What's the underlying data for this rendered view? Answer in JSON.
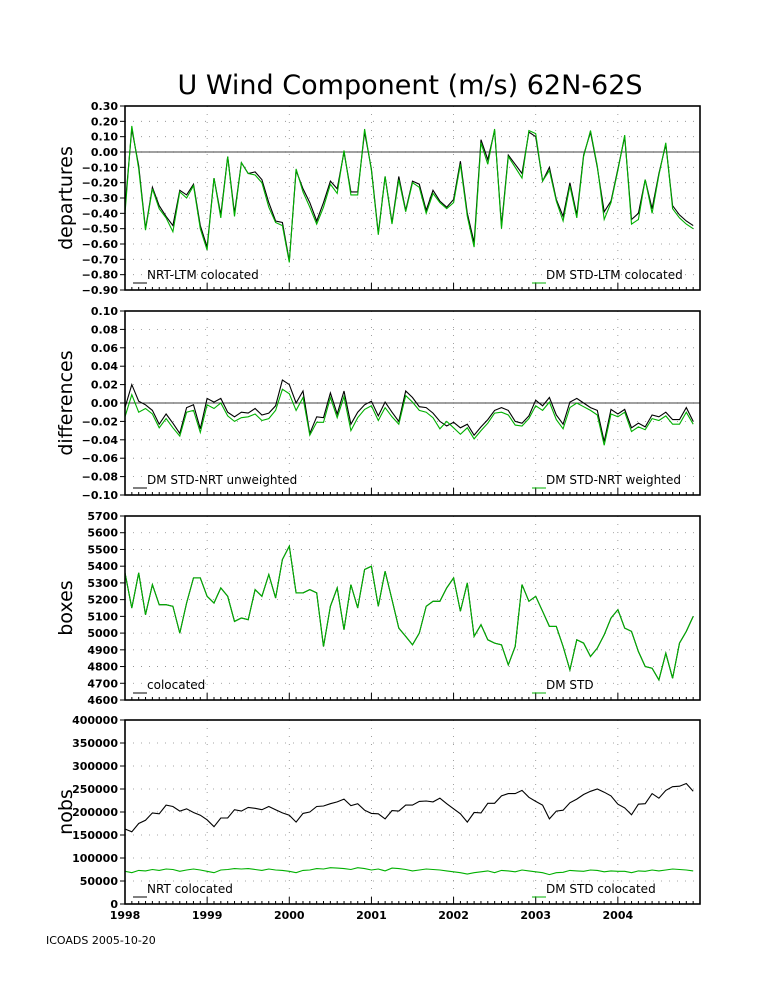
{
  "footer": "ICOADS 2005-10-20",
  "colors": {
    "series1": "#000000",
    "series2": "#00b000",
    "grid": "#888888"
  },
  "chart_data": [
    {
      "type": "line",
      "title": "U Wind Component (m/s) 62N-62S",
      "ylabel": "departures",
      "x_start": "1998-01",
      "x_step": "month",
      "ylim": [
        -0.9,
        0.3
      ],
      "yticks": [
        -0.9,
        -0.8,
        -0.7,
        -0.6,
        -0.5,
        -0.4,
        -0.3,
        -0.2,
        -0.1,
        0.0,
        0.1,
        0.2,
        0.3
      ],
      "tick_decimals": 2,
      "zero_line": true,
      "series": [
        {
          "name": "NRT-LTM colocated",
          "values": [
            -0.36,
            0.15,
            -0.09,
            -0.5,
            -0.23,
            -0.35,
            -0.42,
            -0.48,
            -0.25,
            -0.28,
            -0.21,
            -0.48,
            -0.62,
            -0.17,
            -0.41,
            -0.03,
            -0.4,
            -0.07,
            -0.14,
            -0.13,
            -0.18,
            -0.33,
            -0.45,
            -0.46,
            -0.71,
            -0.12,
            -0.24,
            -0.33,
            -0.45,
            -0.33,
            -0.19,
            -0.24,
            0.0,
            -0.26,
            -0.26,
            0.13,
            -0.11,
            -0.53,
            -0.16,
            -0.46,
            -0.16,
            -0.38,
            -0.19,
            -0.21,
            -0.38,
            -0.25,
            -0.32,
            -0.36,
            -0.31,
            -0.06,
            -0.4,
            -0.59,
            0.08,
            -0.05,
            0.14,
            -0.48,
            -0.02,
            -0.08,
            -0.14,
            0.13,
            0.1,
            -0.19,
            -0.1,
            -0.31,
            -0.42,
            -0.2,
            -0.41,
            -0.02,
            0.13,
            -0.1,
            -0.39,
            -0.32,
            -0.11,
            0.1,
            -0.44,
            -0.4,
            -0.18,
            -0.37,
            -0.14,
            0.05,
            -0.35,
            -0.41,
            -0.45,
            -0.48
          ]
        },
        {
          "name": "DM STD-LTM colocated",
          "values": [
            -0.4,
            0.17,
            -0.11,
            -0.51,
            -0.24,
            -0.37,
            -0.43,
            -0.52,
            -0.26,
            -0.3,
            -0.22,
            -0.5,
            -0.64,
            -0.17,
            -0.43,
            -0.03,
            -0.42,
            -0.07,
            -0.14,
            -0.15,
            -0.2,
            -0.36,
            -0.46,
            -0.48,
            -0.72,
            -0.11,
            -0.26,
            -0.36,
            -0.47,
            -0.36,
            -0.21,
            -0.27,
            0.01,
            -0.28,
            -0.28,
            0.15,
            -0.12,
            -0.54,
            -0.16,
            -0.47,
            -0.18,
            -0.39,
            -0.2,
            -0.23,
            -0.4,
            -0.27,
            -0.33,
            -0.37,
            -0.33,
            -0.08,
            -0.42,
            -0.62,
            0.06,
            -0.08,
            0.15,
            -0.5,
            -0.03,
            -0.1,
            -0.17,
            0.14,
            0.12,
            -0.19,
            -0.12,
            -0.32,
            -0.45,
            -0.22,
            -0.43,
            -0.03,
            0.14,
            -0.09,
            -0.44,
            -0.33,
            -0.12,
            0.11,
            -0.47,
            -0.44,
            -0.18,
            -0.4,
            -0.15,
            0.06,
            -0.37,
            -0.43,
            -0.47,
            -0.5
          ]
        }
      ]
    },
    {
      "type": "line",
      "ylabel": "differences",
      "x_start": "1998-01",
      "x_step": "month",
      "ylim": [
        -0.1,
        0.1
      ],
      "yticks": [
        -0.1,
        -0.08,
        -0.06,
        -0.04,
        -0.02,
        0.0,
        0.02,
        0.04,
        0.06,
        0.08,
        0.1
      ],
      "tick_decimals": 2,
      "zero_line": true,
      "series": [
        {
          "name": "DM STD-NRT unweighted",
          "values": [
            -0.005,
            0.02,
            0.002,
            -0.002,
            -0.008,
            -0.023,
            -0.012,
            -0.022,
            -0.033,
            -0.005,
            -0.002,
            -0.028,
            0.005,
            0.001,
            0.005,
            -0.01,
            -0.015,
            -0.01,
            -0.011,
            -0.006,
            -0.013,
            -0.011,
            -0.003,
            0.025,
            0.02,
            0.0,
            0.013,
            -0.033,
            -0.015,
            -0.016,
            0.011,
            -0.012,
            0.013,
            -0.023,
            -0.01,
            -0.002,
            0.002,
            -0.014,
            0.001,
            -0.01,
            -0.02,
            0.013,
            0.006,
            -0.004,
            -0.005,
            -0.011,
            -0.02,
            -0.025,
            -0.021,
            -0.027,
            -0.023,
            -0.035,
            -0.026,
            -0.018,
            -0.008,
            -0.005,
            -0.008,
            -0.02,
            -0.022,
            -0.014,
            0.003,
            -0.003,
            0.006,
            -0.013,
            -0.023,
            0.001,
            0.005,
            0.0,
            -0.005,
            -0.008,
            -0.042,
            -0.007,
            -0.012,
            -0.007,
            -0.027,
            -0.022,
            -0.026,
            -0.013,
            -0.015,
            -0.01,
            -0.018,
            -0.018,
            -0.005,
            -0.02
          ]
        },
        {
          "name": "DM STD-NRT weighted",
          "values": [
            -0.015,
            0.009,
            -0.01,
            -0.006,
            -0.012,
            -0.027,
            -0.017,
            -0.027,
            -0.036,
            -0.01,
            -0.008,
            -0.032,
            -0.002,
            -0.006,
            0.0,
            -0.014,
            -0.02,
            -0.016,
            -0.015,
            -0.012,
            -0.019,
            -0.017,
            -0.008,
            0.015,
            0.01,
            -0.008,
            0.006,
            -0.035,
            -0.021,
            -0.021,
            0.006,
            -0.016,
            0.007,
            -0.03,
            -0.016,
            -0.007,
            -0.003,
            -0.019,
            -0.005,
            -0.015,
            -0.023,
            0.008,
            0.001,
            -0.008,
            -0.01,
            -0.016,
            -0.028,
            -0.02,
            -0.027,
            -0.034,
            -0.027,
            -0.039,
            -0.03,
            -0.022,
            -0.011,
            -0.01,
            -0.013,
            -0.024,
            -0.025,
            -0.017,
            -0.003,
            -0.008,
            0.001,
            -0.018,
            -0.028,
            -0.005,
            0.0,
            -0.004,
            -0.008,
            -0.013,
            -0.046,
            -0.012,
            -0.015,
            -0.01,
            -0.031,
            -0.026,
            -0.029,
            -0.017,
            -0.019,
            -0.014,
            -0.023,
            -0.023,
            -0.01,
            -0.023
          ]
        }
      ]
    },
    {
      "type": "line",
      "ylabel": "boxes",
      "x_start": "1998-01",
      "x_step": "month",
      "ylim": [
        4600,
        5700
      ],
      "yticks": [
        4600,
        4700,
        4800,
        4900,
        5000,
        5100,
        5200,
        5300,
        5400,
        5500,
        5600,
        5700
      ],
      "tick_decimals": 0,
      "zero_line": false,
      "series": [
        {
          "name": "colocated",
          "values": [
            5360,
            5150,
            5360,
            5110,
            5290,
            5170,
            5170,
            5160,
            5000,
            5180,
            5330,
            5330,
            5220,
            5180,
            5270,
            5220,
            5070,
            5090,
            5080,
            5260,
            5220,
            5350,
            5210,
            5440,
            5520,
            5240,
            5240,
            5260,
            5240,
            4920,
            5160,
            5270,
            5020,
            5290,
            5150,
            5380,
            5400,
            5160,
            5370,
            5200,
            5030,
            4980,
            4930,
            5000,
            5160,
            5190,
            5190,
            5270,
            5330,
            5130,
            5300,
            4980,
            5050,
            4960,
            4940,
            4930,
            4810,
            4920,
            5290,
            5190,
            5220,
            5130,
            5040,
            5040,
            4920,
            4780,
            4960,
            4940,
            4860,
            4910,
            4990,
            5090,
            5140,
            5030,
            5010,
            4890,
            4800,
            4790,
            4720,
            4880,
            4730,
            4940,
            5010,
            5100
          ]
        },
        {
          "name": "DM STD",
          "values": [
            5360,
            5150,
            5360,
            5110,
            5290,
            5170,
            5170,
            5160,
            5000,
            5180,
            5330,
            5330,
            5220,
            5180,
            5270,
            5220,
            5070,
            5090,
            5080,
            5260,
            5220,
            5350,
            5210,
            5440,
            5520,
            5240,
            5240,
            5260,
            5240,
            4920,
            5160,
            5270,
            5020,
            5290,
            5150,
            5380,
            5400,
            5160,
            5370,
            5200,
            5030,
            4980,
            4930,
            5000,
            5160,
            5190,
            5190,
            5270,
            5330,
            5130,
            5300,
            4980,
            5050,
            4960,
            4940,
            4930,
            4810,
            4920,
            5290,
            5190,
            5220,
            5130,
            5040,
            5040,
            4920,
            4780,
            4960,
            4940,
            4860,
            4910,
            4990,
            5090,
            5140,
            5030,
            5010,
            4890,
            4800,
            4790,
            4720,
            4880,
            4730,
            4940,
            5010,
            5100
          ]
        }
      ]
    },
    {
      "type": "line",
      "ylabel": "nobs",
      "x_start": "1998-01",
      "x_step": "month",
      "ylim": [
        0,
        400000
      ],
      "yticks": [
        0,
        50000,
        100000,
        150000,
        200000,
        250000,
        300000,
        350000,
        400000
      ],
      "tick_decimals": 0,
      "zero_line": false,
      "xticks": [
        "1998",
        "1999",
        "2000",
        "2001",
        "2002",
        "2003",
        "2004"
      ],
      "series": [
        {
          "name": "NRT colocated",
          "values": [
            163000,
            157000,
            175000,
            182000,
            198000,
            196000,
            215000,
            212000,
            202000,
            207000,
            199000,
            193000,
            183000,
            168000,
            187000,
            187000,
            205000,
            202000,
            210000,
            208000,
            205000,
            212000,
            205000,
            198000,
            193000,
            178000,
            197000,
            200000,
            212000,
            213000,
            218000,
            222000,
            228000,
            214000,
            218000,
            204000,
            197000,
            196000,
            185000,
            203000,
            202000,
            215000,
            215000,
            223000,
            224000,
            222000,
            230000,
            218000,
            207000,
            196000,
            178000,
            199000,
            198000,
            219000,
            219000,
            235000,
            240000,
            240000,
            247000,
            232000,
            223000,
            215000,
            185000,
            202000,
            204000,
            220000,
            228000,
            238000,
            245000,
            250000,
            243000,
            235000,
            217000,
            209000,
            194000,
            217000,
            218000,
            240000,
            230000,
            247000,
            255000,
            256000,
            262000,
            245000
          ]
        },
        {
          "name": "DM STD colocated",
          "values": [
            71000,
            68000,
            73000,
            72000,
            75000,
            73000,
            76000,
            75000,
            71000,
            74000,
            76000,
            74000,
            71000,
            68000,
            74000,
            75000,
            77000,
            76000,
            77000,
            75000,
            73000,
            76000,
            74000,
            73000,
            71000,
            68000,
            73000,
            74000,
            77000,
            76000,
            79000,
            78000,
            77000,
            75000,
            79000,
            77000,
            74000,
            76000,
            72000,
            78000,
            77000,
            75000,
            72000,
            74000,
            76000,
            75000,
            74000,
            72000,
            70000,
            68000,
            65000,
            68000,
            70000,
            72000,
            68000,
            73000,
            72000,
            70000,
            74000,
            72000,
            70000,
            68000,
            64000,
            68000,
            69000,
            73000,
            72000,
            71000,
            74000,
            73000,
            70000,
            72000,
            71000,
            71000,
            68000,
            72000,
            71000,
            74000,
            72000,
            74000,
            76000,
            75000,
            74000,
            72000
          ]
        }
      ]
    }
  ]
}
